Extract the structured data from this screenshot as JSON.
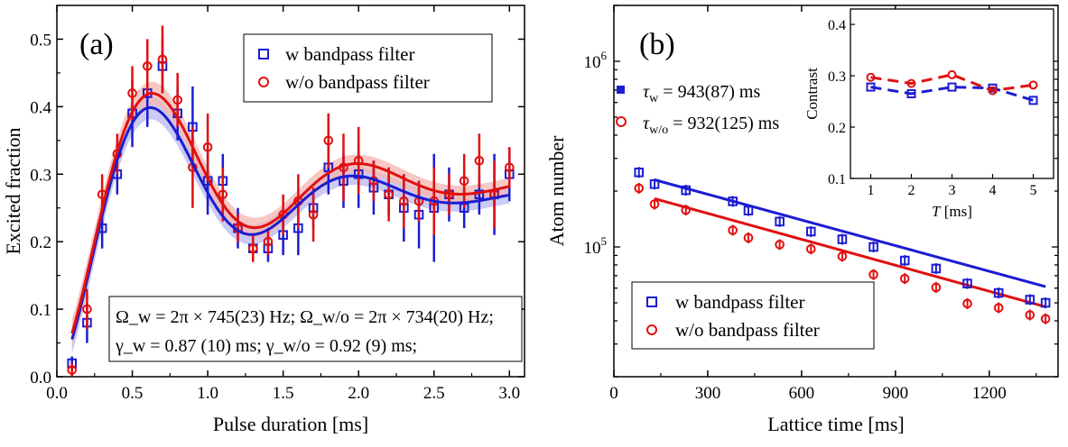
{
  "colors": {
    "w": "#1c1cd2",
    "wo": "#e01010",
    "band_w": "#b8b8ee",
    "band_wo": "#f4b6b0"
  },
  "chart_data": [
    {
      "type": "scatter",
      "panel_label": "(a)",
      "xlabel": "Pulse duration [ms]",
      "ylabel": "Excited fraction",
      "xlim": [
        0.0,
        3.1
      ],
      "ylim": [
        0.0,
        0.55
      ],
      "xticks": [
        "0.0",
        "0.5",
        "1.0",
        "1.5",
        "2.0",
        "2.5",
        "3.0"
      ],
      "yticks": [
        "0.0",
        "0.1",
        "0.2",
        "0.3",
        "0.4",
        "0.5"
      ],
      "legend": {
        "position": "top-right",
        "entries": [
          "w bandpass filter",
          "w/o bandpass filter"
        ]
      },
      "annotation": {
        "line1": "Ω_w = 2π × 745(23) Hz; Ω_w/o = 2π × 734(20) Hz;",
        "line2": "γ_w = 0.87 (10) ms;          γ_w/o = 0.92 (9) ms;"
      },
      "series": [
        {
          "name": "w bandpass filter",
          "marker": "square",
          "x": [
            0.1,
            0.2,
            0.3,
            0.4,
            0.5,
            0.6,
            0.7,
            0.8,
            0.9,
            1.0,
            1.1,
            1.2,
            1.3,
            1.4,
            1.5,
            1.6,
            1.7,
            1.8,
            1.9,
            2.0,
            2.1,
            2.2,
            2.3,
            2.4,
            2.5,
            2.6,
            2.7,
            2.8,
            2.9,
            3.0
          ],
          "y": [
            0.02,
            0.08,
            0.22,
            0.3,
            0.39,
            0.42,
            0.46,
            0.39,
            0.37,
            0.29,
            0.29,
            0.22,
            0.19,
            0.19,
            0.21,
            0.22,
            0.25,
            0.31,
            0.29,
            0.3,
            0.28,
            0.27,
            0.25,
            0.24,
            0.25,
            0.27,
            0.25,
            0.27,
            0.27,
            0.3
          ],
          "err": [
            0.01,
            0.03,
            0.03,
            0.03,
            0.05,
            0.05,
            0.04,
            0.04,
            0.06,
            0.05,
            0.04,
            0.03,
            0.02,
            0.02,
            0.03,
            0.04,
            0.03,
            0.04,
            0.04,
            0.05,
            0.04,
            0.03,
            0.05,
            0.05,
            0.08,
            0.04,
            0.03,
            0.03,
            0.06,
            0.04
          ]
        },
        {
          "name": "w/o bandpass filter",
          "marker": "circle",
          "x": [
            0.1,
            0.2,
            0.3,
            0.4,
            0.5,
            0.6,
            0.7,
            0.8,
            0.9,
            1.0,
            1.1,
            1.2,
            1.3,
            1.4,
            1.5,
            1.6,
            1.7,
            1.8,
            1.9,
            2.0,
            2.1,
            2.2,
            2.3,
            2.4,
            2.5,
            2.6,
            2.7,
            2.8,
            2.9,
            3.0
          ],
          "y": [
            0.01,
            0.1,
            0.27,
            0.33,
            0.42,
            0.46,
            0.47,
            0.41,
            0.31,
            0.34,
            0.27,
            0.22,
            0.19,
            0.2,
            0.24,
            0.26,
            0.24,
            0.35,
            0.31,
            0.32,
            0.29,
            0.27,
            0.26,
            0.26,
            0.26,
            0.27,
            0.29,
            0.32,
            0.27,
            0.31
          ],
          "err": [
            0.01,
            0.03,
            0.03,
            0.03,
            0.04,
            0.04,
            0.05,
            0.04,
            0.06,
            0.05,
            0.04,
            0.02,
            0.02,
            0.02,
            0.03,
            0.04,
            0.04,
            0.04,
            0.05,
            0.05,
            0.03,
            0.04,
            0.04,
            0.03,
            0.05,
            0.03,
            0.04,
            0.04,
            0.05,
            0.03
          ]
        }
      ],
      "fits": [
        {
          "series": "w bandpass filter",
          "omega_hz": 745,
          "gamma_ms": 0.87,
          "offset": 0.27,
          "amp": 0.27
        },
        {
          "series": "w/o bandpass filter",
          "omega_hz": 734,
          "gamma_ms": 0.92,
          "offset": 0.285,
          "amp": 0.275
        }
      ]
    },
    {
      "type": "scatter",
      "panel_label": "(b)",
      "xlabel": "Lattice time [ms]",
      "ylabel": "Atom number",
      "yscale": "log",
      "xlim": [
        0,
        1420
      ],
      "ylim": [
        20000,
        2000000
      ],
      "xticks": [
        "0",
        "300",
        "600",
        "900",
        "1200"
      ],
      "yticks": [
        {
          "value": 100000,
          "base": "10",
          "exp": "5"
        },
        {
          "value": 1000000,
          "base": "10",
          "exp": "6"
        }
      ],
      "legend": {
        "position": "bottom-left",
        "entries": [
          "w bandpass filter",
          "w/o bandpass filter"
        ]
      },
      "tau_labels": [
        {
          "sym": "τ",
          "sub": "w",
          "value": " = 943(87) ms"
        },
        {
          "sym": "τ",
          "sub": "w/o",
          "value": " = 932(125) ms"
        }
      ],
      "series": [
        {
          "name": "w bandpass filter",
          "marker": "square",
          "x": [
            80,
            130,
            230,
            380,
            430,
            530,
            630,
            730,
            830,
            930,
            1030,
            1130,
            1230,
            1330,
            1380
          ],
          "y": [
            252000,
            218000,
            202000,
            176000,
            157000,
            137000,
            121000,
            110000,
            100000,
            84500,
            76500,
            63500,
            56500,
            52000,
            50000
          ]
        },
        {
          "name": "w/o bandpass filter",
          "marker": "circle",
          "x": [
            80,
            130,
            230,
            380,
            430,
            530,
            630,
            730,
            830,
            930,
            1030,
            1130,
            1230,
            1330,
            1380
          ],
          "y": [
            207000,
            170000,
            158000,
            123000,
            112000,
            103000,
            97500,
            89000,
            71000,
            67500,
            60500,
            49500,
            47000,
            43000,
            41000
          ]
        }
      ],
      "fits": [
        {
          "series": "w bandpass filter",
          "tau_ms": 943,
          "x_range": [
            130,
            1380
          ],
          "n0": 230000
        },
        {
          "series": "w/o bandpass filter",
          "tau_ms": 932,
          "x_range": [
            130,
            1380
          ],
          "n0": 182000
        }
      ]
    },
    {
      "type": "line",
      "role": "inset",
      "xlabel_sym": "T",
      "xlabel_unit": " [ms]",
      "ylabel": "Contrast",
      "xlim": [
        0.5,
        5.5
      ],
      "ylim": [
        0.1,
        0.43
      ],
      "xticks": [
        "1",
        "2",
        "3",
        "4",
        "5"
      ],
      "yticks": [
        "0.1",
        "0.2",
        "0.3",
        "0.4"
      ],
      "series": [
        {
          "name": "w",
          "marker": "square",
          "x": [
            1,
            2,
            3,
            4,
            5
          ],
          "y": [
            0.278,
            0.265,
            0.278,
            0.276,
            0.252
          ]
        },
        {
          "name": "w/o",
          "marker": "circle",
          "x": [
            1,
            2,
            3,
            4,
            5
          ],
          "y": [
            0.297,
            0.285,
            0.302,
            0.271,
            0.282
          ]
        }
      ]
    }
  ]
}
